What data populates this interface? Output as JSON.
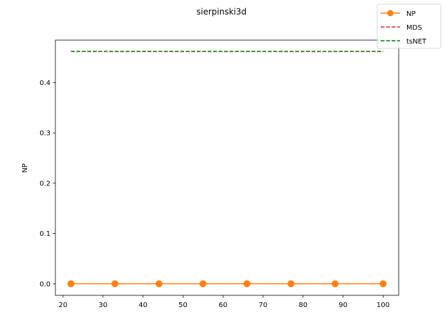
{
  "chart_data": {
    "type": "line",
    "title": "sierpinski3d",
    "xlabel": "",
    "ylabel": "NP",
    "xlim": [
      18.1,
      103.9
    ],
    "ylim": [
      -0.023,
      0.4845
    ],
    "x_ticks": [
      20,
      30,
      40,
      50,
      60,
      70,
      80,
      90,
      100
    ],
    "y_ticks": [
      0.0,
      0.1,
      0.2,
      0.3,
      0.4
    ],
    "grid": false,
    "legend_position": "top-right",
    "series": [
      {
        "name": "NP",
        "style": "solid",
        "marker": "circle",
        "color": "#ff7f0e",
        "x": [
          22,
          33,
          44,
          55,
          66,
          77,
          88,
          100
        ],
        "y": [
          0.0,
          0.0,
          0.0,
          0.0,
          0.0,
          0.0,
          0.0,
          0.0
        ]
      },
      {
        "name": "MDS",
        "style": "dashed",
        "marker": "none",
        "color": "#d62728",
        "x": [
          22,
          100
        ],
        "y": [
          0.462,
          0.462
        ]
      },
      {
        "name": "tsNET",
        "style": "dashed",
        "marker": "none",
        "color": "#008000",
        "x": [
          22,
          100
        ],
        "y": [
          0.462,
          0.462
        ]
      }
    ]
  }
}
